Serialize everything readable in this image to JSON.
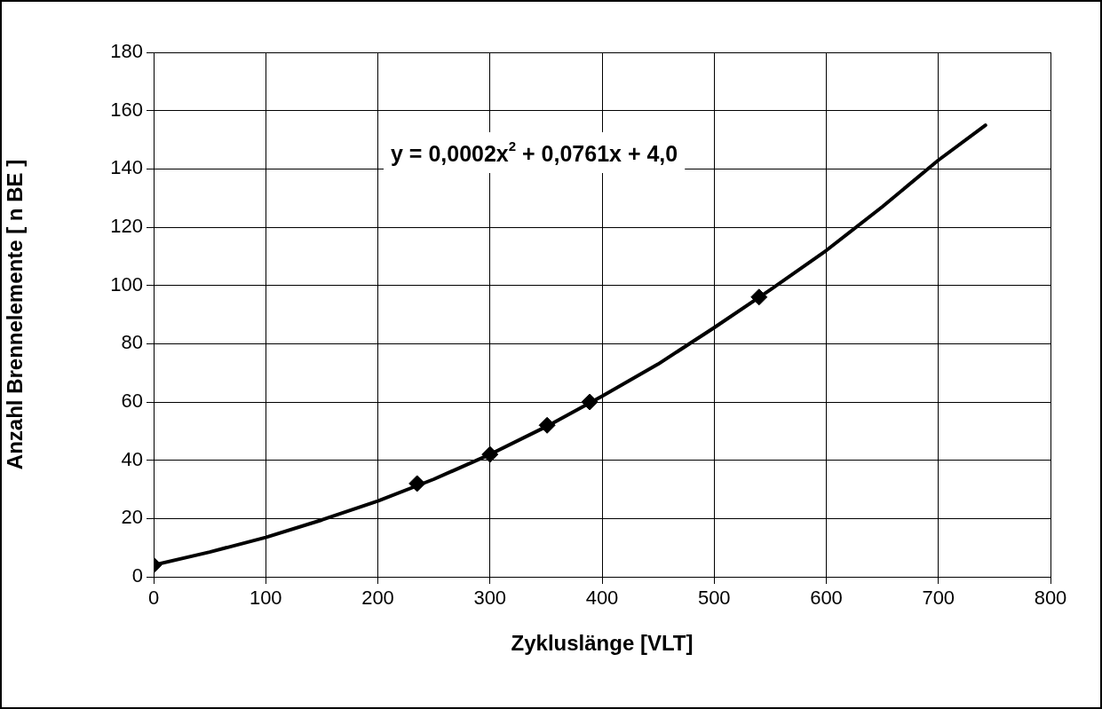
{
  "chart_data": {
    "type": "scatter",
    "xlabel": "Zykluslänge [VLT]",
    "ylabel": "Anzahl Brennelemente [ n BE ]",
    "xlim": [
      0,
      800
    ],
    "xticks": [
      0,
      100,
      200,
      300,
      400,
      500,
      600,
      700,
      800
    ],
    "ylim": [
      0,
      180
    ],
    "yticks": [
      0,
      20,
      40,
      60,
      80,
      100,
      120,
      140,
      160,
      180
    ],
    "grid": true,
    "legend": false,
    "marker": "diamond",
    "annotations": [
      "y = 0,0002x$^{2}$ + 0,0761x + 4,0"
    ],
    "series": [
      {
        "color": "#000000",
        "x": [
          0,
          235,
          300,
          351,
          389,
          540
        ],
        "values": [
          4,
          32,
          42,
          52,
          60,
          96
        ]
      },
      {
        "type": "line",
        "color": "#000000",
        "marker": "none",
        "x": [
          0,
          50,
          100,
          150,
          200,
          250,
          300,
          350,
          400,
          450,
          500,
          550,
          600,
          650,
          700,
          742
        ],
        "values": [
          4,
          8.5,
          13.5,
          19.5,
          26,
          33.5,
          42,
          51.5,
          62,
          73,
          85.5,
          98.5,
          112,
          127,
          143,
          155
        ]
      }
    ]
  }
}
